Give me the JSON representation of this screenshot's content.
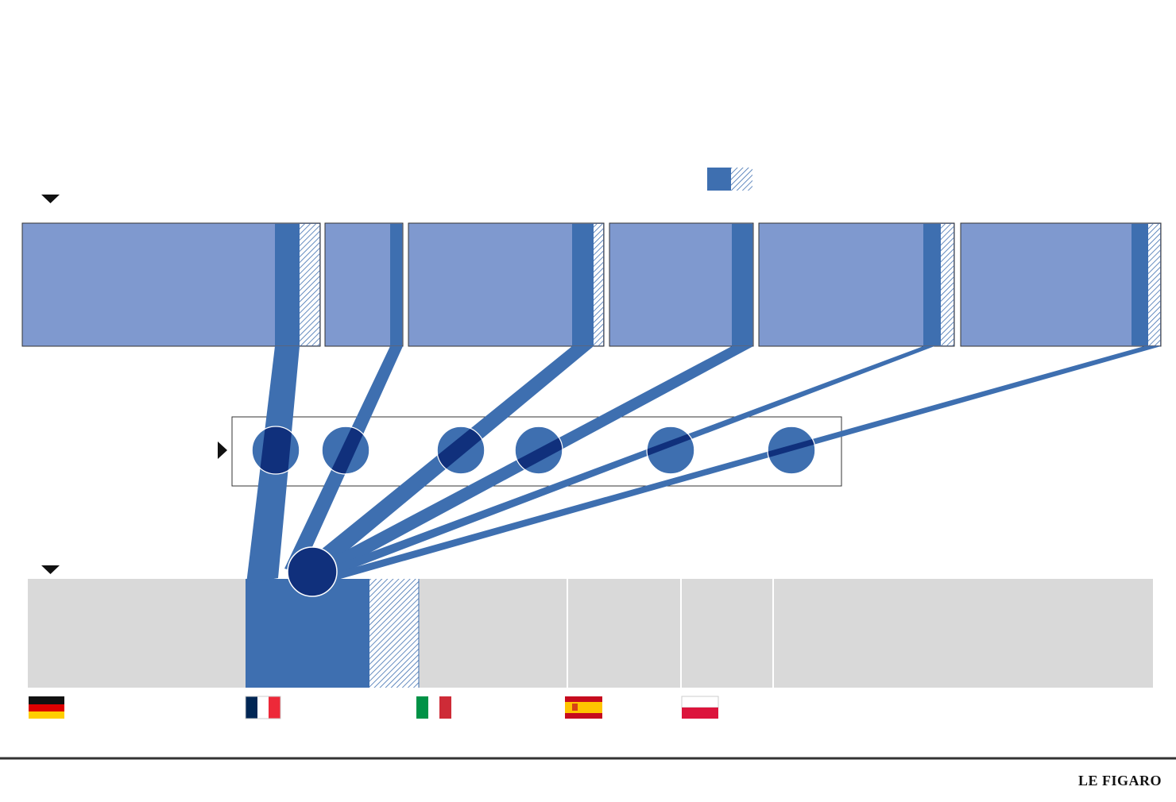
{
  "footer": {
    "brand": "LE FIGARO"
  }
}
